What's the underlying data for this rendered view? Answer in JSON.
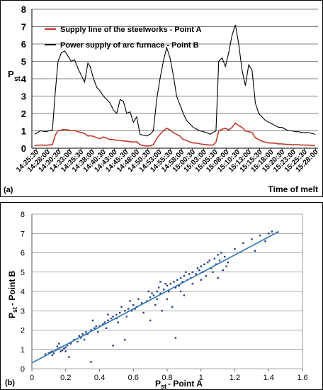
{
  "chart_data": [
    {
      "type": "line",
      "panel_label": "(a)",
      "xlabel": "Time of melt",
      "ylabel_main": "P",
      "ylabel_sub": "st",
      "ylim": [
        0,
        8
      ],
      "yticks": [
        0,
        1,
        2,
        3,
        4,
        5,
        6,
        7,
        8
      ],
      "grid": true,
      "legend_placement": "top-left",
      "categories": [
        "14:25:30",
        "14:28:00",
        "14:30:30",
        "14:33:00",
        "14:35:30",
        "14:38:00",
        "14:40:30",
        "14:43:00",
        "14:45:30",
        "14:48:00",
        "14:50:30",
        "14:53:00",
        "14:55:30",
        "14:58:00",
        "15:00:30",
        "15:03:00",
        "15:05:30",
        "15:08:00",
        "15:10:30",
        "15:13:00",
        "15:15:30",
        "15:18:00",
        "15:20:30",
        "15:23:00",
        "15:25:30",
        "15:28:00"
      ],
      "series": [
        {
          "name": "Supply line of the steelworks   - Point  A",
          "color": "#c0392b",
          "x": [
            0,
            0.5,
            1,
            1.6,
            1.85,
            2.1,
            2.4,
            2.7,
            3.0,
            3.3,
            3.6,
            3.9,
            4.2,
            4.5,
            4.8,
            5.0,
            5.3,
            5.6,
            5.9,
            6.2,
            6.5,
            6.8,
            7.1,
            7.4,
            7.7,
            8.0,
            8.3,
            8.6,
            8.9,
            9.2,
            9.5,
            9.8,
            10.1,
            10.4,
            10.7,
            11.0,
            11.3,
            11.6,
            11.9,
            12.2,
            12.5,
            12.8,
            13.1,
            13.4,
            13.7,
            14.0,
            14.3,
            14.6,
            14.9,
            15.2,
            15.5,
            15.8,
            16.1,
            16.35,
            16.6,
            16.9,
            17.2,
            17.5,
            17.8,
            18.1,
            18.4,
            18.7,
            19.0,
            19.3,
            19.6,
            19.9,
            20.2,
            20.5,
            20.8,
            21.1,
            21.4,
            21.7,
            22.0,
            22.3,
            22.6,
            22.9,
            23.2,
            23.5,
            23.8,
            24.1,
            24.4,
            24.7,
            25.0,
            25.3
          ],
          "values": [
            0.15,
            0.18,
            0.17,
            0.2,
            0.75,
            1.0,
            1.05,
            1.08,
            1.05,
            1.0,
            1.02,
            0.95,
            0.9,
            0.85,
            0.7,
            0.72,
            0.68,
            0.6,
            0.55,
            0.65,
            0.58,
            0.5,
            0.5,
            0.45,
            0.45,
            0.42,
            0.4,
            0.38,
            0.35,
            0.38,
            0.2,
            0.15,
            0.12,
            0.14,
            0.2,
            0.55,
            0.8,
            1.0,
            1.15,
            1.05,
            0.9,
            0.8,
            0.7,
            0.5,
            0.45,
            0.35,
            0.3,
            0.3,
            0.25,
            0.22,
            0.2,
            0.18,
            0.18,
            0.35,
            1.0,
            1.1,
            1.15,
            1.05,
            1.2,
            1.45,
            1.3,
            1.2,
            1.0,
            0.95,
            0.9,
            0.6,
            0.5,
            0.4,
            0.35,
            0.3,
            0.3,
            0.28,
            0.25,
            0.25,
            0.22,
            0.22,
            0.2,
            0.2,
            0.2,
            0.18,
            0.18,
            0.18,
            0.15,
            0.15
          ]
        },
        {
          "name": "Power supply of arc furnace     - Point  B",
          "color": "#000000",
          "x": [
            0,
            0.5,
            1,
            1.6,
            1.85,
            2.1,
            2.4,
            2.7,
            3.0,
            3.3,
            3.6,
            3.9,
            4.2,
            4.5,
            4.8,
            5.0,
            5.3,
            5.6,
            5.9,
            6.2,
            6.5,
            6.8,
            7.1,
            7.4,
            7.7,
            8.0,
            8.3,
            8.6,
            8.9,
            9.2,
            9.5,
            9.8,
            10.1,
            10.4,
            10.7,
            11.0,
            11.3,
            11.6,
            11.9,
            12.2,
            12.5,
            12.8,
            13.1,
            13.4,
            13.7,
            14.0,
            14.3,
            14.6,
            14.9,
            15.2,
            15.5,
            15.8,
            16.1,
            16.35,
            16.6,
            16.9,
            17.2,
            17.5,
            17.8,
            18.1,
            18.4,
            18.7,
            19.0,
            19.3,
            19.6,
            19.9,
            20.2,
            20.5,
            20.8,
            21.1,
            21.4,
            21.7,
            22.0,
            22.3,
            22.6,
            22.9,
            23.2,
            23.5,
            23.8,
            24.1,
            24.4,
            24.7,
            25.0,
            25.3
          ],
          "values": [
            0.8,
            1.0,
            0.95,
            1.05,
            3.2,
            5.0,
            5.5,
            5.6,
            5.3,
            5.0,
            5.1,
            4.6,
            4.2,
            3.8,
            4.9,
            4.7,
            4.0,
            3.5,
            3.3,
            3.0,
            2.8,
            2.6,
            2.2,
            2.0,
            2.8,
            2.7,
            2.0,
            2.1,
            1.5,
            1.8,
            0.8,
            0.75,
            0.7,
            0.8,
            1.0,
            2.8,
            4.0,
            5.0,
            5.8,
            5.2,
            4.2,
            3.0,
            2.5,
            2.0,
            1.6,
            1.4,
            1.2,
            1.1,
            1.0,
            0.95,
            0.9,
            0.8,
            0.9,
            1.0,
            5.0,
            5.2,
            4.7,
            5.5,
            6.5,
            7.1,
            6.0,
            4.5,
            3.6,
            4.8,
            4.5,
            2.6,
            2.0,
            1.8,
            1.6,
            1.5,
            1.4,
            1.3,
            1.2,
            1.2,
            1.1,
            1.0,
            1.0,
            0.95,
            0.95,
            0.9,
            0.9,
            0.9,
            0.85,
            0.8
          ]
        }
      ]
    },
    {
      "type": "scatter",
      "panel_label": "(b)",
      "xlabel": "P",
      "xlabel_sub": "st",
      "xlabel_rest": "- Point A",
      "ylabel_main": "P",
      "ylabel_sub": "st",
      "ylabel_rest": "- Point B",
      "xlim": [
        0,
        1.6
      ],
      "ylim": [
        0,
        8
      ],
      "xticks": [
        "0",
        "0.2",
        "0.4",
        "0.6",
        "0.8",
        "1",
        "1.2",
        "1.4",
        "1.6"
      ],
      "yticks": [
        "0",
        "1",
        "2",
        "3",
        "4",
        "5",
        "6",
        "7",
        "8"
      ],
      "grid": true,
      "trendline": {
        "x": [
          0,
          1.46
        ],
        "y": [
          0.3,
          7.1
        ],
        "color": "#2e75b6"
      },
      "point_color": "#1f3c88",
      "points": [
        [
          0.08,
          0.75
        ],
        [
          0.1,
          0.8
        ],
        [
          0.11,
          0.85
        ],
        [
          0.12,
          0.9
        ],
        [
          0.13,
          0.8
        ],
        [
          0.14,
          0.95
        ],
        [
          0.15,
          1.0
        ],
        [
          0.16,
          1.05
        ],
        [
          0.17,
          1.1
        ],
        [
          0.18,
          0.95
        ],
        [
          0.19,
          1.05
        ],
        [
          0.2,
          1.1
        ],
        [
          0.21,
          1.2
        ],
        [
          0.12,
          0.7
        ],
        [
          0.15,
          1.15
        ],
        [
          0.17,
          0.9
        ],
        [
          0.22,
          0.6
        ],
        [
          0.16,
          1.3
        ],
        [
          0.25,
          1.5
        ],
        [
          0.28,
          1.7
        ],
        [
          0.3,
          1.8
        ],
        [
          0.32,
          1.9
        ],
        [
          0.35,
          2.0
        ],
        [
          0.37,
          2.1
        ],
        [
          0.38,
          2.2
        ],
        [
          0.4,
          2.2
        ],
        [
          0.42,
          2.3
        ],
        [
          0.36,
          2.5
        ],
        [
          0.39,
          1.9
        ],
        [
          0.45,
          2.5
        ],
        [
          0.47,
          2.6
        ],
        [
          0.48,
          2.7
        ],
        [
          0.5,
          2.8
        ],
        [
          0.52,
          2.9
        ],
        [
          0.55,
          3.0
        ],
        [
          0.57,
          3.1
        ],
        [
          0.53,
          3.2
        ],
        [
          0.6,
          3.3
        ],
        [
          0.45,
          2.8
        ],
        [
          0.55,
          1.5
        ],
        [
          0.58,
          3.5
        ],
        [
          0.62,
          3.2
        ],
        [
          0.35,
          0.35
        ],
        [
          0.48,
          1.2
        ],
        [
          0.68,
          3.5
        ],
        [
          0.7,
          3.7
        ],
        [
          0.72,
          3.8
        ],
        [
          0.74,
          4.0
        ],
        [
          0.75,
          4.2
        ],
        [
          0.76,
          3.9
        ],
        [
          0.78,
          4.1
        ],
        [
          0.8,
          4.3
        ],
        [
          0.82,
          4.4
        ],
        [
          0.84,
          4.5
        ],
        [
          0.85,
          4.2
        ],
        [
          0.86,
          4.6
        ],
        [
          0.88,
          4.7
        ],
        [
          0.9,
          4.8
        ],
        [
          0.92,
          4.6
        ],
        [
          0.93,
          4.9
        ],
        [
          0.95,
          5.0
        ],
        [
          0.7,
          2.5
        ],
        [
          0.73,
          3.3
        ],
        [
          0.77,
          3.0
        ],
        [
          0.8,
          3.6
        ],
        [
          0.83,
          3.2
        ],
        [
          0.85,
          1.6
        ],
        [
          0.88,
          4.0
        ],
        [
          0.9,
          3.8
        ],
        [
          0.95,
          4.4
        ],
        [
          0.98,
          5.2
        ],
        [
          1.0,
          5.3
        ],
        [
          1.02,
          5.4
        ],
        [
          1.04,
          5.5
        ],
        [
          1.05,
          5.6
        ],
        [
          1.06,
          5.2
        ],
        [
          1.08,
          5.7
        ],
        [
          1.1,
          5.9
        ],
        [
          1.12,
          6.0
        ],
        [
          1.14,
          5.8
        ],
        [
          1.0,
          4.6
        ],
        [
          1.03,
          4.8
        ],
        [
          1.07,
          5.0
        ],
        [
          1.1,
          4.7
        ],
        [
          1.13,
          5.1
        ],
        [
          1.15,
          5.3
        ],
        [
          1.2,
          6.2
        ],
        [
          1.25,
          6.5
        ],
        [
          1.3,
          6.7
        ],
        [
          1.35,
          6.9
        ],
        [
          1.4,
          7.0
        ],
        [
          1.42,
          7.1
        ],
        [
          1.45,
          7.05
        ],
        [
          1.32,
          6.1
        ],
        [
          1.38,
          6.6
        ],
        [
          0.65,
          3.4
        ],
        [
          0.63,
          3.6
        ],
        [
          0.66,
          2.9
        ],
        [
          0.2,
          0.9
        ],
        [
          0.23,
          1.3
        ],
        [
          0.27,
          1.4
        ],
        [
          0.29,
          1.6
        ],
        [
          0.31,
          1.5
        ],
        [
          0.33,
          1.8
        ],
        [
          0.43,
          2.4
        ],
        [
          0.44,
          2.1
        ],
        [
          0.5,
          2.6
        ],
        [
          0.51,
          2.4
        ],
        [
          0.56,
          2.7
        ],
        [
          0.59,
          3.0
        ],
        [
          0.61,
          3.1
        ],
        [
          0.71,
          3.9
        ],
        [
          0.79,
          4.4
        ],
        [
          0.81,
          4.0
        ],
        [
          0.87,
          4.3
        ],
        [
          0.89,
          4.5
        ],
        [
          0.91,
          5.0
        ],
        [
          0.94,
          4.7
        ],
        [
          0.97,
          4.9
        ],
        [
          0.99,
          5.1
        ],
        [
          1.01,
          5.0
        ],
        [
          1.09,
          5.4
        ],
        [
          1.11,
          5.6
        ],
        [
          1.16,
          5.5
        ],
        [
          0.74,
          3.6
        ],
        [
          0.76,
          4.5
        ],
        [
          0.69,
          4.0
        ]
      ]
    }
  ]
}
